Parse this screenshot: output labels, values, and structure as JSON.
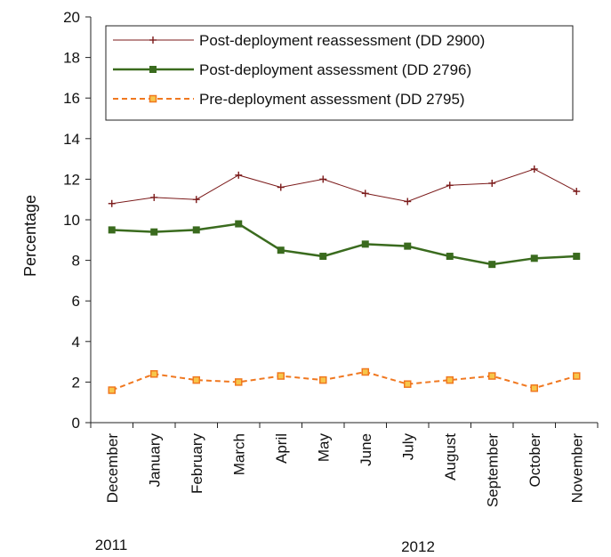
{
  "chart_data": {
    "type": "line",
    "ylabel": "Percentage",
    "ylim": [
      0,
      20
    ],
    "yticks": [
      0,
      2,
      4,
      6,
      8,
      10,
      12,
      14,
      16,
      18,
      20
    ],
    "categories": [
      "December",
      "January",
      "February",
      "March",
      "April",
      "May",
      "June",
      "July",
      "August",
      "September",
      "October",
      "November"
    ],
    "year_labels": [
      "2011",
      "2012"
    ],
    "legend_position": "top",
    "grid": false,
    "series": [
      {
        "name": "Post-deployment reassessment (DD 2900)",
        "color": "#7b1a1a",
        "marker": "plus",
        "dash": "solid",
        "values": [
          10.8,
          11.1,
          11.0,
          12.2,
          11.6,
          12.0,
          11.3,
          10.9,
          11.7,
          11.8,
          12.5,
          11.4
        ]
      },
      {
        "name": "Post-deployment assessment (DD 2796)",
        "color": "#3a6b1e",
        "marker": "square",
        "dash": "solid",
        "values": [
          9.5,
          9.4,
          9.5,
          9.8,
          8.5,
          8.2,
          8.8,
          8.7,
          8.2,
          7.8,
          8.1,
          8.2
        ]
      },
      {
        "name": "Pre-deployment assessment (DD 2795)",
        "color": "#f07820",
        "marker": "square-hollow",
        "dash": "dashed",
        "values": [
          1.6,
          2.4,
          2.1,
          2.0,
          2.3,
          2.1,
          2.5,
          1.9,
          2.1,
          2.3,
          1.7,
          2.3
        ]
      }
    ]
  }
}
